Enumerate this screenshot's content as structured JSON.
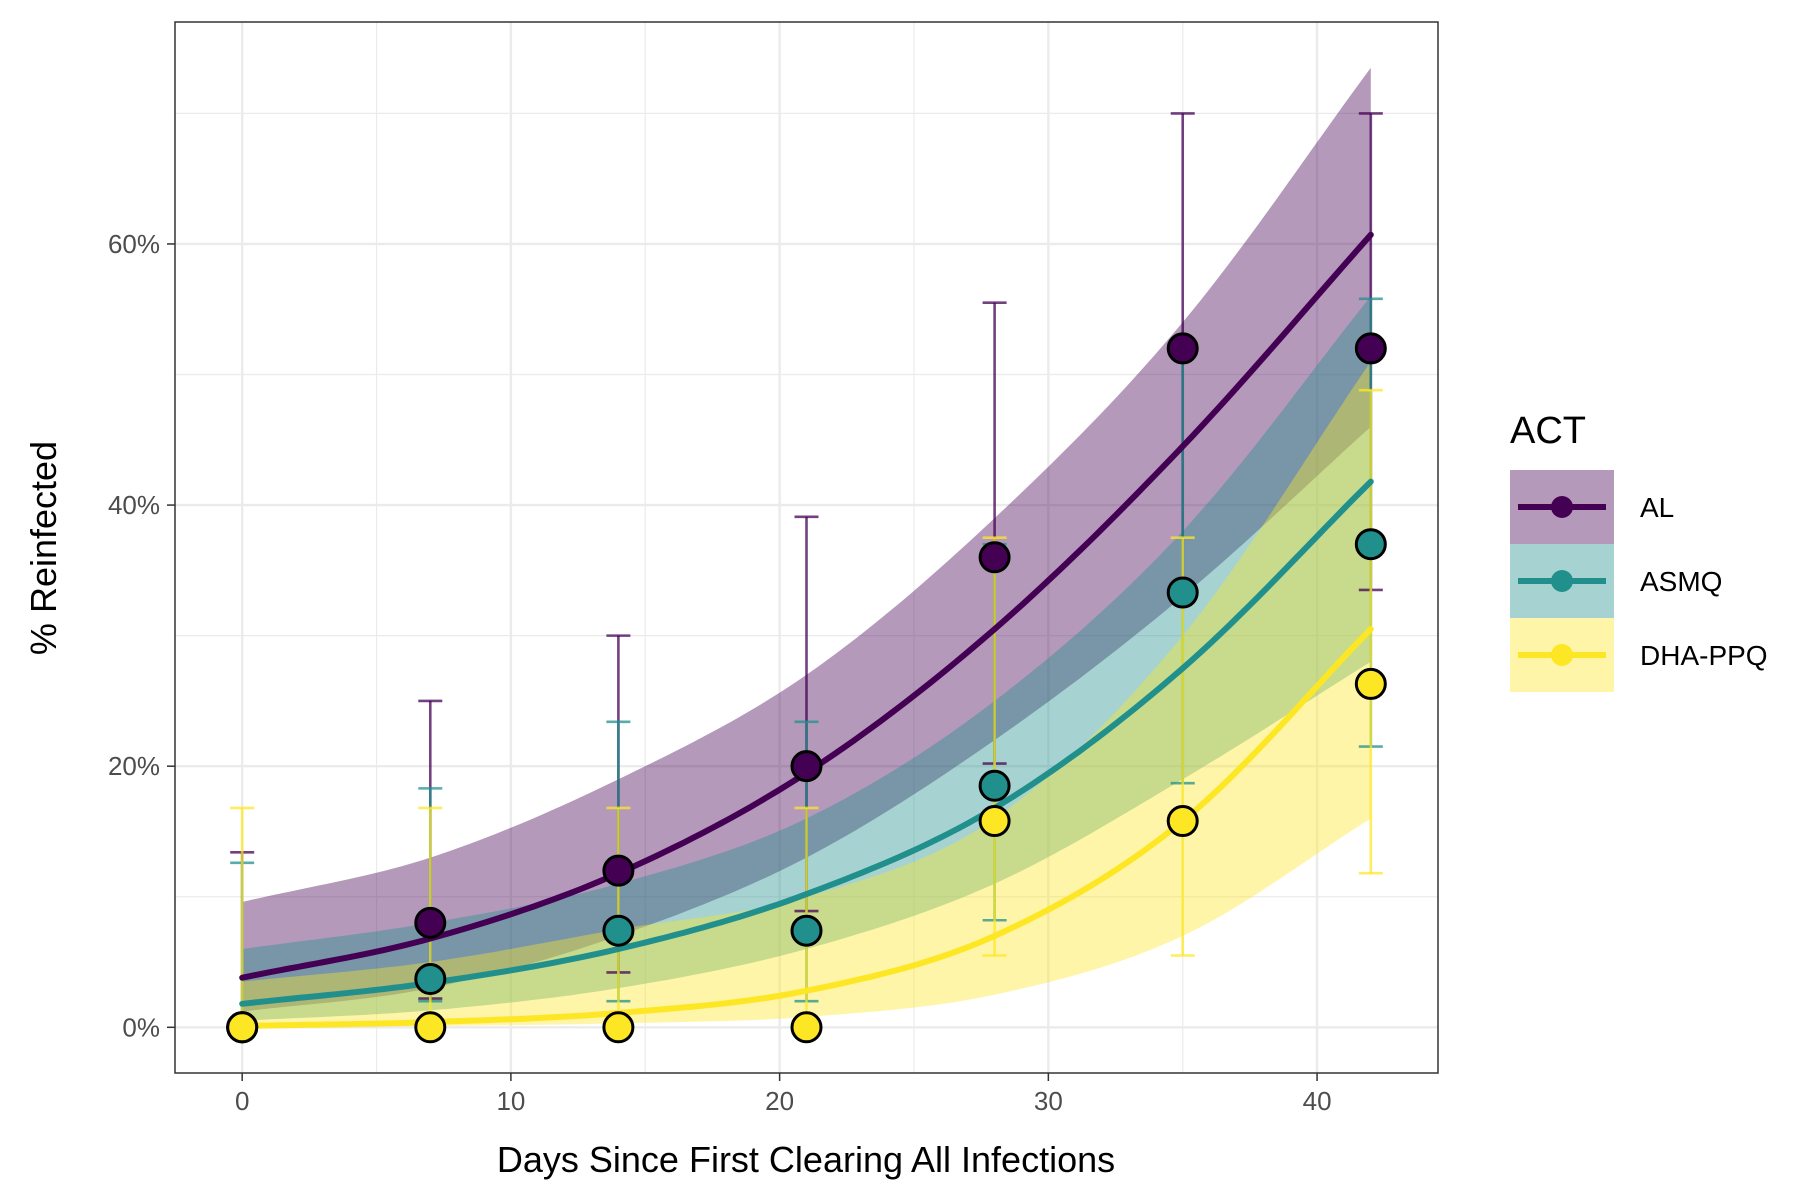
{
  "chart_data": {
    "type": "line",
    "title": "",
    "xlabel": "Days Since First Clearing All Infections",
    "ylabel": "% Reinfected",
    "xlim": [
      -2.5,
      44.5
    ],
    "ylim": [
      -3.5,
      77
    ],
    "x_ticks": [
      0,
      10,
      20,
      30,
      40
    ],
    "x_tick_labels": [
      "0",
      "10",
      "20",
      "30",
      "40"
    ],
    "x_minor_ticks": [
      5,
      15,
      25,
      35
    ],
    "y_ticks": [
      0,
      20,
      40,
      60
    ],
    "y_tick_labels": [
      "0%",
      "20%",
      "40%",
      "60%"
    ],
    "y_minor_ticks": [
      10,
      30,
      50,
      70
    ],
    "grid": true,
    "legend": {
      "title": "ACT",
      "position": "right"
    },
    "series": [
      {
        "name": "AL",
        "color": "#440154",
        "fit_x": [
          0,
          7,
          14,
          21,
          28,
          35,
          42
        ],
        "fit_y": [
          3.8,
          6.8,
          11.8,
          19.5,
          30.5,
          44.5,
          60.7
        ],
        "band_lower": [
          1.2,
          3.0,
          7.0,
          13.0,
          22.0,
          33.0,
          46.0
        ],
        "band_upper": [
          9.6,
          13.0,
          19.0,
          27.0,
          39.0,
          54.0,
          73.5
        ],
        "points": [
          {
            "x": 0,
            "y": 0.0,
            "lo": 0.0,
            "hi": 13.4
          },
          {
            "x": 7,
            "y": 8.0,
            "lo": 2.2,
            "hi": 25.0
          },
          {
            "x": 14,
            "y": 12.0,
            "lo": 4.2,
            "hi": 30.0
          },
          {
            "x": 21,
            "y": 20.0,
            "lo": 8.9,
            "hi": 39.1
          },
          {
            "x": 28,
            "y": 36.0,
            "lo": 20.2,
            "hi": 55.5
          },
          {
            "x": 35,
            "y": 52.0,
            "lo": 33.5,
            "hi": 70.0
          },
          {
            "x": 42,
            "y": 52.0,
            "lo": 33.5,
            "hi": 70.0
          }
        ]
      },
      {
        "name": "ASMQ",
        "color": "#21908C",
        "fit_x": [
          0,
          7,
          14,
          21,
          28,
          35,
          42
        ],
        "fit_y": [
          1.8,
          3.4,
          6.0,
          10.2,
          16.8,
          27.5,
          41.8
        ],
        "band_lower": [
          0.5,
          1.3,
          3.0,
          6.0,
          11.0,
          19.0,
          28.0
        ],
        "band_upper": [
          6.0,
          8.0,
          11.0,
          16.0,
          25.0,
          38.0,
          56.0
        ],
        "points": [
          {
            "x": 0,
            "y": 0.0,
            "lo": 0.0,
            "hi": 12.6
          },
          {
            "x": 7,
            "y": 3.7,
            "lo": 2.0,
            "hi": 18.3
          },
          {
            "x": 14,
            "y": 7.4,
            "lo": 2.0,
            "hi": 23.4
          },
          {
            "x": 21,
            "y": 7.4,
            "lo": 2.0,
            "hi": 23.4
          },
          {
            "x": 28,
            "y": 18.5,
            "lo": 8.2,
            "hi": 37.0
          },
          {
            "x": 35,
            "y": 33.3,
            "lo": 18.7,
            "hi": 52.0
          },
          {
            "x": 42,
            "y": 37.0,
            "lo": 21.5,
            "hi": 55.8
          }
        ]
      },
      {
        "name": "DHA-PPQ",
        "color": "#FDE725",
        "fit_x": [
          0,
          7,
          14,
          21,
          28,
          35,
          42
        ],
        "fit_y": [
          0.1,
          0.4,
          1.1,
          2.8,
          7.0,
          15.8,
          30.5
        ],
        "band_lower": [
          0.0,
          0.1,
          0.3,
          0.8,
          2.5,
          7.0,
          16.0
        ],
        "band_upper": [
          3.5,
          5.0,
          7.5,
          10.0,
          16.0,
          30.0,
          51.0
        ],
        "points": [
          {
            "x": 0,
            "y": 0.0,
            "lo": 0.0,
            "hi": 16.8
          },
          {
            "x": 7,
            "y": 0.0,
            "lo": 0.0,
            "hi": 16.8
          },
          {
            "x": 14,
            "y": 0.0,
            "lo": 0.0,
            "hi": 16.8
          },
          {
            "x": 21,
            "y": 0.0,
            "lo": 0.0,
            "hi": 16.8
          },
          {
            "x": 28,
            "y": 15.8,
            "lo": 5.5,
            "hi": 37.5
          },
          {
            "x": 35,
            "y": 15.8,
            "lo": 5.5,
            "hi": 37.5
          },
          {
            "x": 42,
            "y": 26.3,
            "lo": 11.8,
            "hi": 48.8
          }
        ]
      }
    ]
  }
}
